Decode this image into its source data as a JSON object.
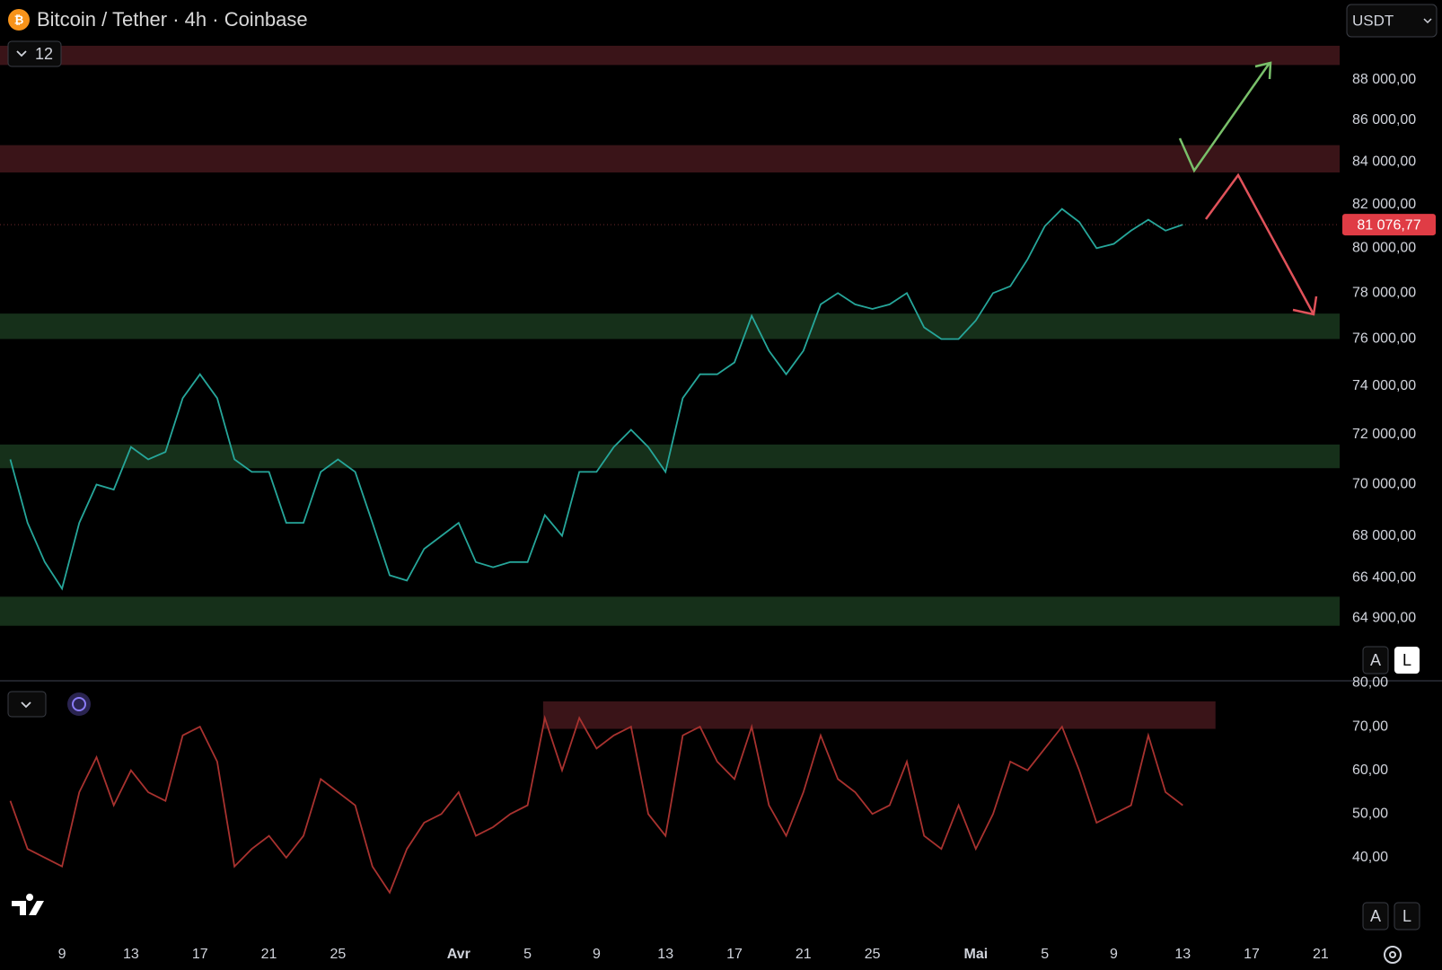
{
  "header": {
    "title": "Bitcoin / Tether · 4h · Coinbase",
    "currency": "USDT",
    "indicator_count": "12"
  },
  "controls": {
    "auto": "A",
    "log": "L"
  },
  "chart_data": [
    {
      "type": "line",
      "log_scale": true,
      "color": "#26a69a",
      "x": [
        6,
        7,
        8,
        9,
        10,
        11,
        12,
        13,
        14,
        15,
        16,
        17,
        18,
        19,
        20,
        21,
        22,
        23,
        24,
        25,
        26,
        27,
        28,
        29,
        30,
        31,
        32,
        33,
        34,
        35,
        36,
        37,
        38,
        39,
        40,
        41,
        42,
        43,
        44,
        45,
        46,
        47,
        48,
        49,
        50,
        51,
        52,
        53,
        54,
        55,
        56,
        57,
        58,
        59,
        60,
        61,
        62,
        63,
        64,
        65,
        66,
        67,
        68,
        69,
        70,
        71,
        72,
        73,
        74
      ],
      "values": [
        71000,
        68500,
        67000,
        66000,
        68500,
        70000,
        69800,
        71500,
        71000,
        71300,
        73500,
        74500,
        73500,
        71000,
        70500,
        70500,
        68500,
        68500,
        70500,
        71000,
        70500,
        68500,
        66500,
        66300,
        67500,
        68000,
        68500,
        67000,
        66800,
        67000,
        67000,
        68800,
        68000,
        70500,
        70500,
        71500,
        72200,
        71500,
        70500,
        73500,
        74500,
        74500,
        75000,
        77000,
        75500,
        74500,
        75500,
        77500,
        78000,
        77500,
        77300,
        77500,
        78000,
        76500,
        76000,
        76000,
        76800,
        78000,
        78300,
        79500,
        81000,
        81800,
        81200,
        80000,
        80200,
        80800,
        81300,
        80800,
        81076.77
      ],
      "xlim": [
        5.4,
        83.1
      ],
      "ylim": [
        62650,
        92050
      ],
      "yticks": [
        {
          "value": 88000,
          "label": "88 000,00"
        },
        {
          "value": 86000,
          "label": "86 000,00"
        },
        {
          "value": 84000,
          "label": "84 000,00"
        },
        {
          "value": 82000,
          "label": "82 000,00"
        },
        {
          "value": 80000,
          "label": "80 000,00"
        },
        {
          "value": 78000,
          "label": "78 000,00"
        },
        {
          "value": 76000,
          "label": "76 000,00"
        },
        {
          "value": 74000,
          "label": "74 000,00"
        },
        {
          "value": 72000,
          "label": "72 000,00"
        },
        {
          "value": 70000,
          "label": "70 000,00"
        },
        {
          "value": 68000,
          "label": "68 000,00"
        },
        {
          "value": 66400,
          "label": "66 400,00"
        },
        {
          "value": 64900,
          "label": "64 900,00"
        }
      ],
      "xticks": [
        {
          "value": 9,
          "label": "9"
        },
        {
          "value": 13,
          "label": "13"
        },
        {
          "value": 17,
          "label": "17"
        },
        {
          "value": 21,
          "label": "21"
        },
        {
          "value": 25,
          "label": "25"
        },
        {
          "value": 32,
          "label": "Avr"
        },
        {
          "value": 36,
          "label": "5"
        },
        {
          "value": 40,
          "label": "9"
        },
        {
          "value": 44,
          "label": "13"
        },
        {
          "value": 48,
          "label": "17"
        },
        {
          "value": 52,
          "label": "21"
        },
        {
          "value": 56,
          "label": "25"
        },
        {
          "value": 62,
          "label": "Mai"
        },
        {
          "value": 66,
          "label": "5"
        },
        {
          "value": 70,
          "label": "9"
        },
        {
          "value": 74,
          "label": "13"
        },
        {
          "value": 78,
          "label": "17"
        },
        {
          "value": 82,
          "label": "21"
        }
      ],
      "zones": [
        {
          "from": 88730,
          "to": 89700,
          "color": "#3a1418"
        },
        {
          "from": 83500,
          "to": 84800,
          "color": "#3a1418"
        },
        {
          "from": 76000,
          "to": 77100,
          "color": "#16301a"
        },
        {
          "from": 70650,
          "to": 71600,
          "color": "#16301a"
        },
        {
          "from": 64630,
          "to": 65700,
          "color": "#16301a"
        }
      ],
      "last_price": {
        "value": 81076.77,
        "label": "81 076,77"
      }
    },
    {
      "type": "line",
      "color": "#a8322f",
      "x": [
        6,
        7,
        8,
        9,
        10,
        11,
        12,
        13,
        14,
        15,
        16,
        17,
        18,
        19,
        20,
        21,
        22,
        23,
        24,
        25,
        26,
        27,
        28,
        29,
        30,
        31,
        32,
        33,
        34,
        35,
        36,
        37,
        38,
        39,
        40,
        41,
        42,
        43,
        44,
        45,
        46,
        47,
        48,
        49,
        50,
        51,
        52,
        53,
        54,
        55,
        56,
        57,
        58,
        59,
        60,
        61,
        62,
        63,
        64,
        65,
        66,
        67,
        68,
        69,
        70,
        71,
        72,
        73,
        74
      ],
      "values": [
        53,
        42,
        40,
        38,
        55,
        63,
        52,
        60,
        55,
        53,
        68,
        70,
        62,
        38,
        42,
        45,
        40,
        45,
        58,
        55,
        52,
        38,
        32,
        42,
        48,
        50,
        55,
        45,
        47,
        50,
        52,
        72,
        60,
        72,
        65,
        68,
        70,
        50,
        45,
        68,
        70,
        62,
        58,
        70,
        52,
        45,
        55,
        68,
        58,
        55,
        50,
        52,
        62,
        45,
        42,
        52,
        42,
        50,
        62,
        60,
        65,
        70,
        60,
        48,
        50,
        52,
        68,
        55,
        52
      ],
      "xlim": [
        5.4,
        83.1
      ],
      "ylim": [
        22.5,
        80.1
      ],
      "yticks": [
        {
          "value": 80,
          "label": "80,00"
        },
        {
          "value": 70,
          "label": "70,00"
        },
        {
          "value": 60,
          "label": "60,00"
        },
        {
          "value": 50,
          "label": "50,00"
        },
        {
          "value": 40,
          "label": "40,00"
        }
      ],
      "zones": [
        {
          "from": 69.5,
          "to": 75.8,
          "x_from": 36.9,
          "x_to": 75.9,
          "color": "#3a1418"
        }
      ]
    }
  ]
}
